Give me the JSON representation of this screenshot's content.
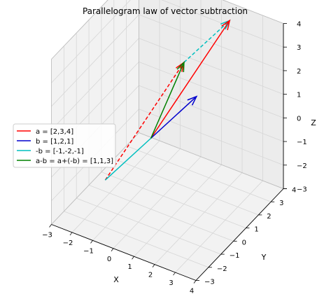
{
  "chart_data": {
    "type": "line",
    "projection": "3d",
    "title": "Parallelogram law of vector subtraction",
    "xlabel": "X",
    "ylabel": "Y",
    "zlabel": "Z",
    "xlim": [
      -3,
      4
    ],
    "ylim": [
      -3,
      4
    ],
    "zlim": [
      -3,
      4
    ],
    "xticks": [
      "−3",
      "−2",
      "−1",
      "0",
      "1",
      "2",
      "3",
      "4"
    ],
    "yticks": [
      "−3",
      "−2",
      "−1",
      "0",
      "1",
      "2",
      "3",
      "4"
    ],
    "zticks": [
      "−3",
      "−2",
      "−1",
      "0",
      "1",
      "2",
      "3",
      "4"
    ],
    "grid": true,
    "legend_position": "center-left",
    "series": [
      {
        "name": "a = [2,3,4]",
        "color": "#ff0000",
        "style": "solid",
        "arrow": true,
        "start": [
          0,
          0,
          0
        ],
        "end": [
          2,
          3,
          4
        ]
      },
      {
        "name": "b = [1,2,1]",
        "color": "#0000cd",
        "style": "solid",
        "arrow": true,
        "start": [
          0,
          0,
          0
        ],
        "end": [
          1,
          2,
          1
        ]
      },
      {
        "name": "-b = [-1,-2,-1]",
        "color": "#00bfbf",
        "style": "solid",
        "arrow": false,
        "start": [
          0,
          0,
          0
        ],
        "end": [
          -1,
          -2,
          -1
        ]
      },
      {
        "name": "a-b = a+(-b) = [1,1,3]",
        "color": "#008000",
        "style": "solid",
        "arrow": true,
        "start": [
          0,
          0,
          0
        ],
        "end": [
          1,
          1,
          3
        ]
      }
    ],
    "guides": [
      {
        "color": "#00bfbf",
        "style": "dashed",
        "arrow": true,
        "start": [
          1,
          1,
          3
        ],
        "end": [
          2,
          3,
          4
        ]
      },
      {
        "color": "#ff0000",
        "style": "dashed",
        "arrow": true,
        "start": [
          -1,
          -2,
          -1
        ],
        "end": [
          1,
          1,
          3
        ]
      }
    ]
  }
}
